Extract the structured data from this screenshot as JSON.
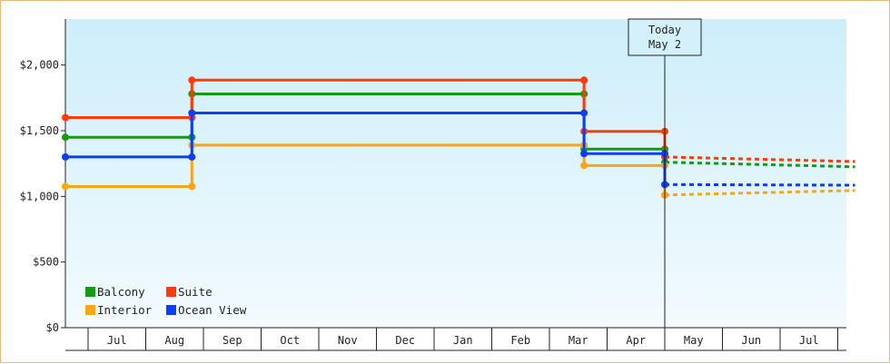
{
  "chart_data": {
    "type": "line",
    "title": "",
    "xlabel": "",
    "ylabel": "",
    "ylim": [
      0,
      2350
    ],
    "y_ticks": [
      {
        "value": 0,
        "label": "$0"
      },
      {
        "value": 500,
        "label": "$500"
      },
      {
        "value": 1000,
        "label": "$1,000"
      },
      {
        "value": 1500,
        "label": "$1,500"
      },
      {
        "value": 2000,
        "label": "$2,000"
      }
    ],
    "x_months": [
      "Jul",
      "Aug",
      "Sep",
      "Oct",
      "Nov",
      "Dec",
      "Jan",
      "Feb",
      "Mar",
      "Apr",
      "May",
      "Jun",
      "Jul"
    ],
    "grid": false,
    "legend_placement": "bottom-left",
    "today": {
      "line1": "Today",
      "line2": "May 2",
      "month_position": 10.0
    },
    "step_months": [
      0.0,
      1.8,
      8.6,
      10.0
    ],
    "forecast_end_month": 13.3,
    "series": [
      {
        "name": "Balcony",
        "color": "#149b14",
        "values": [
          1450,
          1780,
          1360,
          1260
        ],
        "forecast": [
          1260,
          1225
        ]
      },
      {
        "name": "Suite",
        "color": "#ff3b0a",
        "values": [
          1600,
          1885,
          1495,
          1300
        ],
        "forecast": [
          1300,
          1265
        ]
      },
      {
        "name": "Interior",
        "color": "#f7a51a",
        "values": [
          1075,
          1390,
          1235,
          1010
        ],
        "forecast": [
          1010,
          1045
        ]
      },
      {
        "name": "Ocean View",
        "color": "#0d3ef0",
        "values": [
          1300,
          1635,
          1325,
          1090
        ],
        "forecast": [
          1090,
          1085
        ]
      }
    ]
  }
}
